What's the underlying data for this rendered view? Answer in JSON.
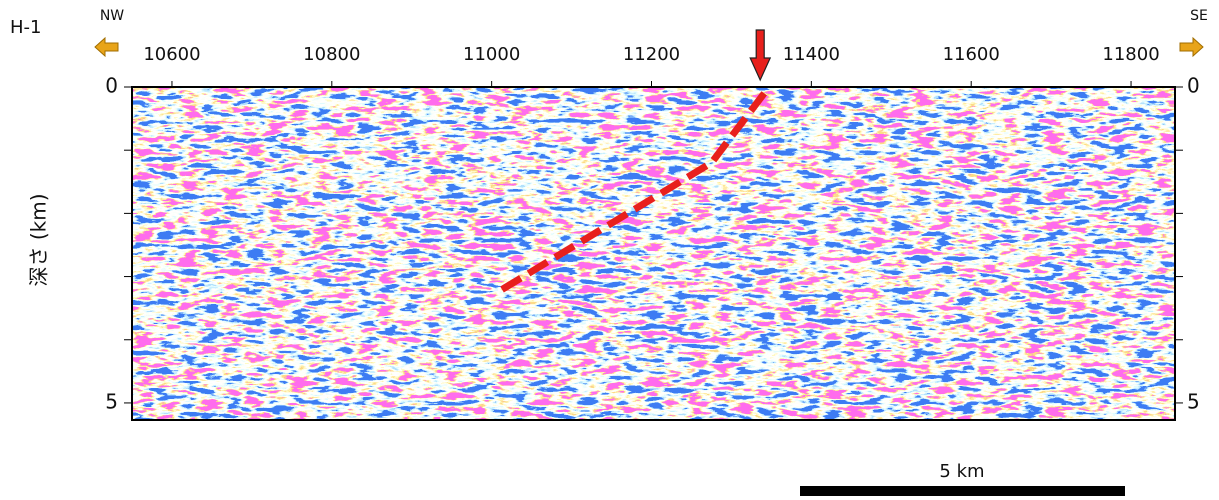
{
  "chart_data": {
    "type": "seismic-section",
    "title": "H-1",
    "left_direction": "NW",
    "right_direction": "SE",
    "ylabel": "深さ (km)",
    "xlim": [
      10550,
      11855
    ],
    "xticks": [
      10600,
      10800,
      11000,
      11200,
      11400,
      11600,
      11800
    ],
    "ylim": [
      0,
      5.27
    ],
    "yticks": [
      0,
      {
        "value": 1,
        "label": null
      },
      {
        "value": 2,
        "label": null
      },
      {
        "value": 3,
        "label": null
      },
      {
        "value": 4,
        "label": null
      },
      5
    ],
    "fault": {
      "color": "#e8201c",
      "x": [
        11341,
        11275,
        11007
      ],
      "y": [
        0.1,
        1.2,
        3.25
      ]
    },
    "arrow_x": 11336,
    "scale_bar_label": "5 km"
  }
}
